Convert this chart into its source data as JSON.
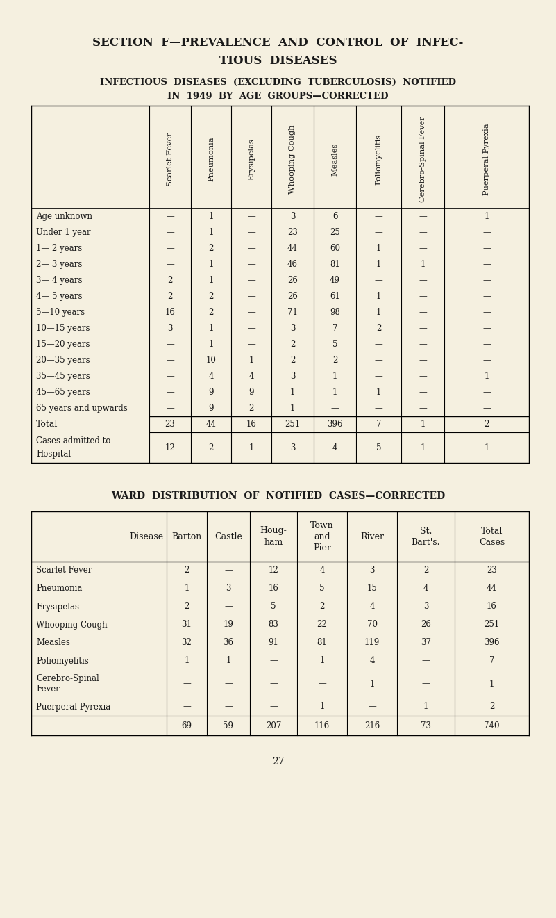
{
  "bg_color": "#f5f0e0",
  "title_line1": "SECTION  F—PREVALENCE  AND  CONTROL  OF  INFEC-",
  "title_line2": "TIOUS  DISEASES",
  "subtitle1": "INFECTIOUS  DISEASES  (EXCLUDING  TUBERCULOSIS)  NOTIFIED",
  "subtitle2": "IN  1949  BY  AGE  GROUPS—CORRECTED",
  "table1_col_headers": [
    "Scarlet Fever",
    "Pneumonia",
    "Erysipelas",
    "Whooping Cough",
    "Measles",
    "Poliomyelitis",
    "Cerebro-Spinal Fever",
    "Puerperal Pyrexia"
  ],
  "table1_row_labels": [
    "Age unknown",
    "Under 1 year",
    "1— 2 years",
    "2— 3 years",
    "3— 4 years",
    "4— 5 years",
    "5—10 years",
    "10—15 years",
    "15—20 years",
    "20—35 years",
    "35—45 years",
    "45—65 years",
    "65 years and upwards",
    "Total",
    "Cases admitted to\nHospital"
  ],
  "table1_data": [
    [
      "—",
      "1",
      "—",
      "3",
      "6",
      "—",
      "—",
      "1"
    ],
    [
      "—",
      "1",
      "—",
      "23",
      "25",
      "—",
      "—",
      "—"
    ],
    [
      "—",
      "2",
      "—",
      "44",
      "60",
      "1",
      "—",
      "—"
    ],
    [
      "—",
      "1",
      "—",
      "46",
      "81",
      "1",
      "1",
      "—"
    ],
    [
      "2",
      "1",
      "—",
      "26",
      "49",
      "—",
      "—",
      "—"
    ],
    [
      "2",
      "2",
      "—",
      "26",
      "61",
      "1",
      "—",
      "—"
    ],
    [
      "16",
      "2",
      "—",
      "71",
      "98",
      "1",
      "—",
      "—"
    ],
    [
      "3",
      "1",
      "—",
      "3",
      "7",
      "2",
      "—",
      "—"
    ],
    [
      "—",
      "1",
      "—",
      "2",
      "5",
      "—",
      "—",
      "—"
    ],
    [
      "—",
      "10",
      "1",
      "2",
      "2",
      "—",
      "—",
      "—"
    ],
    [
      "—",
      "4",
      "4",
      "3",
      "1",
      "—",
      "—",
      "1"
    ],
    [
      "—",
      "9",
      "9",
      "1",
      "1",
      "1",
      "—",
      "—"
    ],
    [
      "—",
      "9",
      "2",
      "1",
      "—",
      "—",
      "—",
      "—"
    ],
    [
      "23",
      "44",
      "16",
      "251",
      "396",
      "7",
      "1",
      "2"
    ],
    [
      "12",
      "2",
      "1",
      "3",
      "4",
      "5",
      "1",
      "1"
    ]
  ],
  "table2_title": "WARD  DISTRIBUTION  OF  NOTIFIED  CASES—CORRECTED",
  "table2_col_headers": [
    "Disease",
    "Barton",
    "Castle",
    "Houg-\nham",
    "Town\nand\nPier",
    "River",
    "St.\nBart's.",
    "Total\nCases"
  ],
  "table2_data": [
    [
      "Scarlet Fever",
      "2",
      "—",
      "12",
      "4",
      "3",
      "2",
      "23"
    ],
    [
      "Pneumonia",
      "1",
      "3",
      "16",
      "5",
      "15",
      "4",
      "44"
    ],
    [
      "Erysipelas",
      "2",
      "—",
      "5",
      "2",
      "4",
      "3",
      "16"
    ],
    [
      "Whooping Cough",
      "31",
      "19",
      "83",
      "22",
      "70",
      "26",
      "251"
    ],
    [
      "Measles",
      "32",
      "36",
      "91",
      "81",
      "119",
      "37",
      "396"
    ],
    [
      "Poliomyelitis",
      "1",
      "1",
      "—",
      "1",
      "4",
      "—",
      "7"
    ],
    [
      "Cerebro-Spinal\nFever",
      "—",
      "—",
      "—",
      "—",
      "1",
      "—",
      "1"
    ],
    [
      "Puerperal Pyrexia",
      "—",
      "—",
      "—",
      "1",
      "—",
      "1",
      "2"
    ],
    [
      "",
      "69",
      "59",
      "207",
      "116",
      "216",
      "73",
      "740"
    ]
  ],
  "page_number": "27"
}
